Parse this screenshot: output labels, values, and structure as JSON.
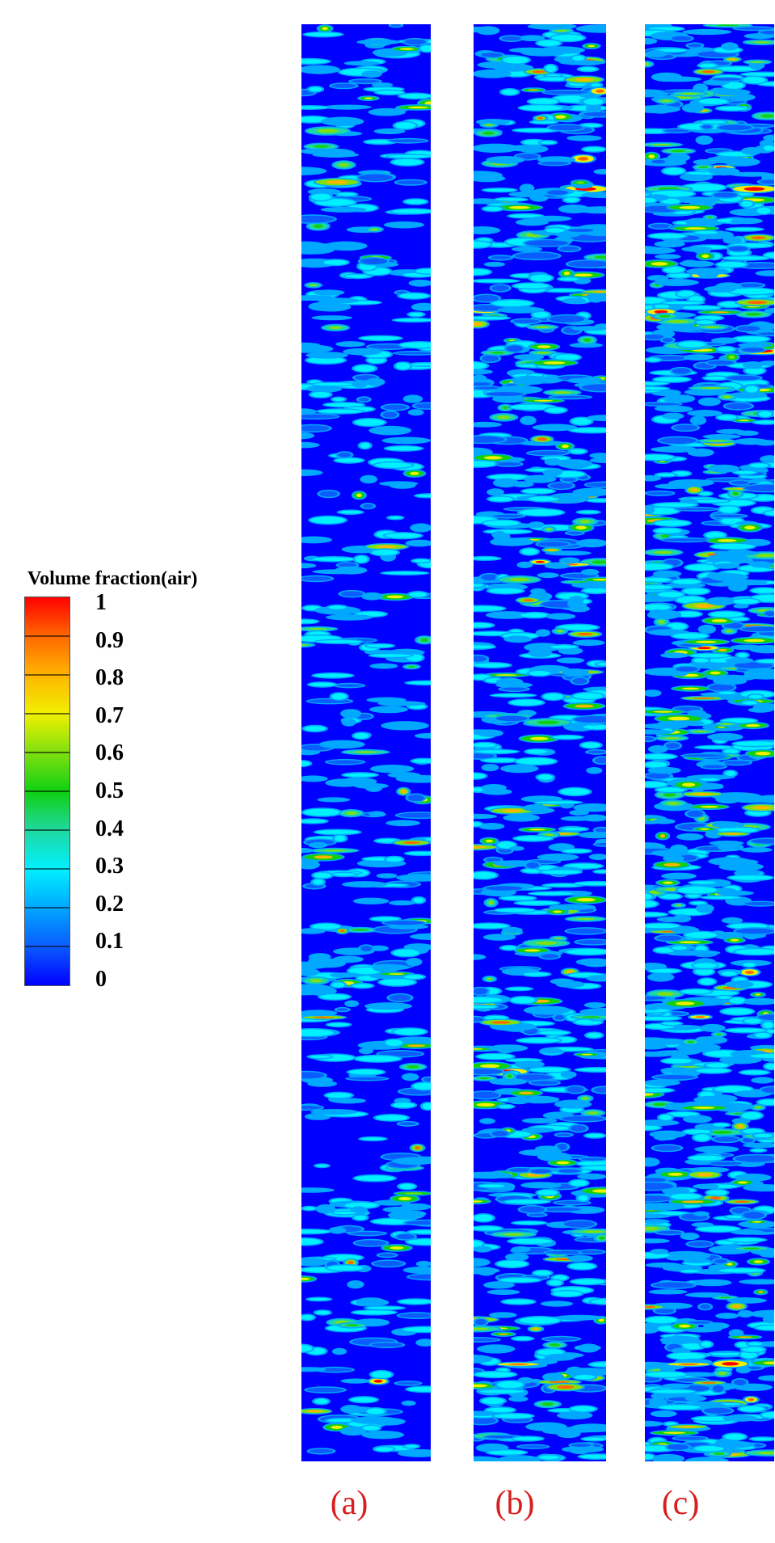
{
  "legend": {
    "title": "Volume fraction(air)",
    "ticks": [
      "1",
      "0.9",
      "0.8",
      "0.7",
      "0.6",
      "0.5",
      "0.4",
      "0.3",
      "0.2",
      "0.1",
      "0"
    ],
    "range": [
      0,
      1
    ],
    "levels": 10,
    "colors": [
      "#0000ff",
      "#0a5cff",
      "#00a8ff",
      "#00f0ff",
      "#20d8a0",
      "#10d010",
      "#80e010",
      "#f0f000",
      "#ffb400",
      "#ff6800",
      "#ff0000"
    ]
  },
  "panels": [
    {
      "label": "(a)",
      "air_fraction_level": "low"
    },
    {
      "label": "(b)",
      "air_fraction_level": "medium"
    },
    {
      "label": "(c)",
      "air_fraction_level": "high"
    }
  ],
  "colors": {
    "background_liquid": "#0000ff",
    "label_color": "#d81e1e"
  }
}
